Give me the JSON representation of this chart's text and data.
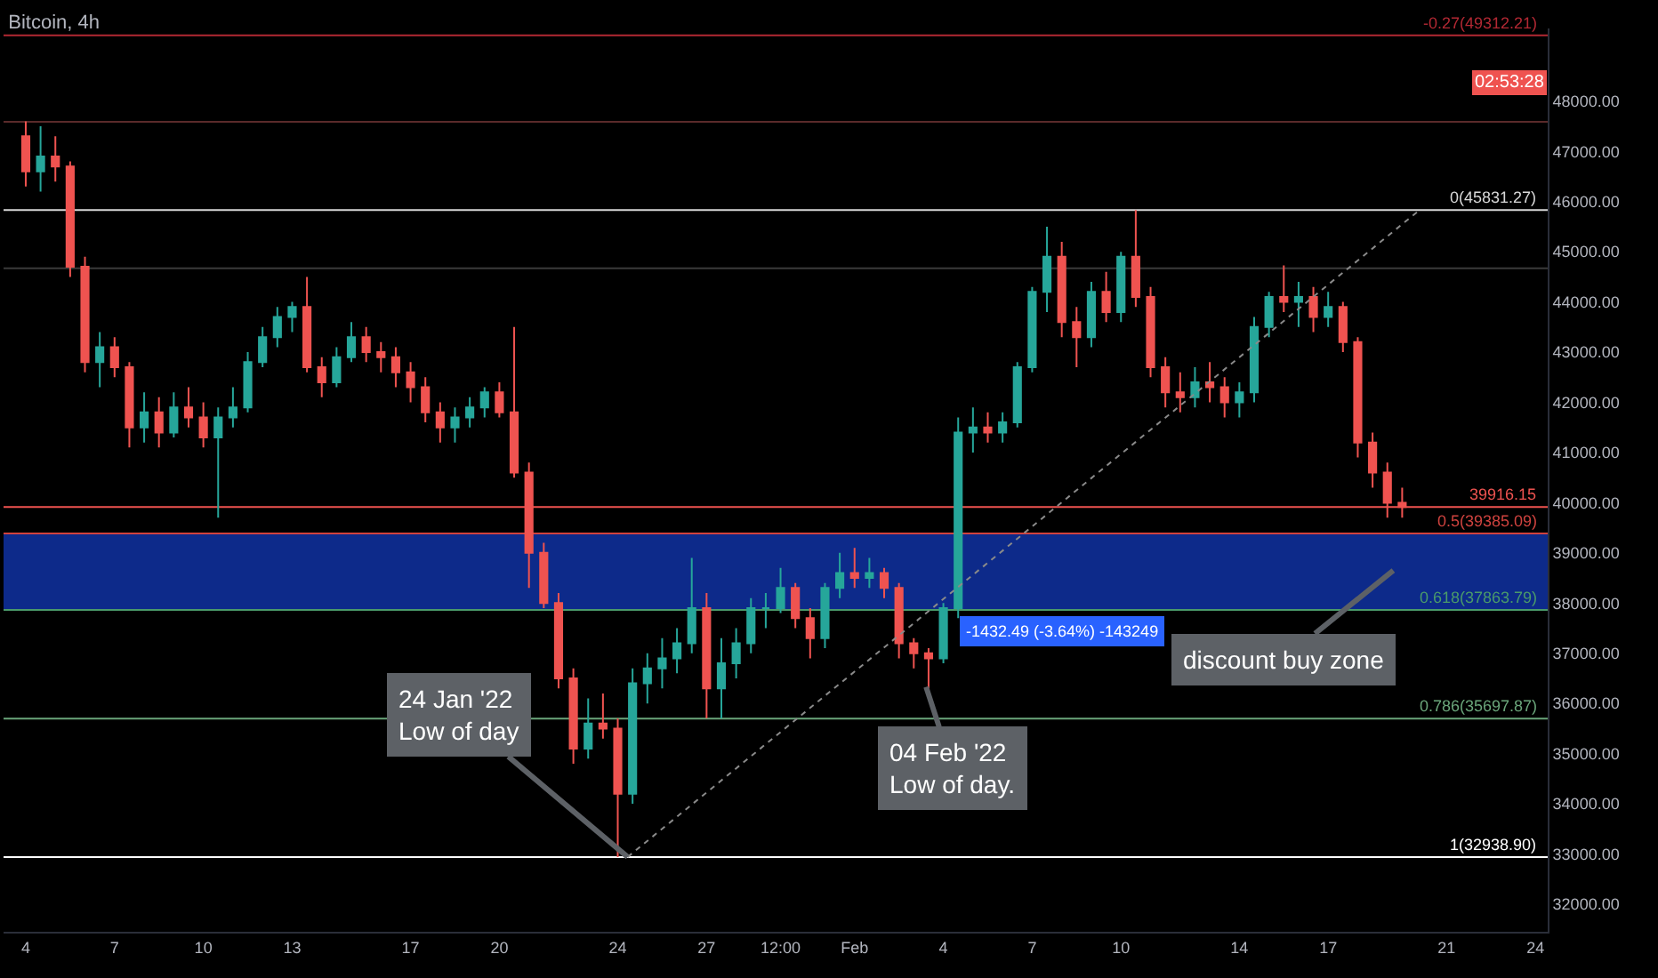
{
  "chart_data": {
    "type": "candlestick",
    "title": "Bitcoin, 4h",
    "x": [
      "2022-01-04T00:00",
      "2022-01-04T12:00",
      "2022-01-05T00:00",
      "2022-01-05T12:00",
      "2022-01-06T00:00",
      "2022-01-06T12:00",
      "2022-01-07T00:00",
      "2022-01-07T12:00",
      "2022-01-08T00:00",
      "2022-01-08T12:00",
      "2022-01-09T00:00",
      "2022-01-09T12:00",
      "2022-01-10T00:00",
      "2022-01-10T12:00",
      "2022-01-11T00:00",
      "2022-01-11T12:00",
      "2022-01-12T00:00",
      "2022-01-12T12:00",
      "2022-01-13T00:00",
      "2022-01-13T12:00",
      "2022-01-14T00:00",
      "2022-01-14T12:00",
      "2022-01-15T00:00",
      "2022-01-15T12:00",
      "2022-01-16T00:00",
      "2022-01-16T12:00",
      "2022-01-17T00:00",
      "2022-01-17T12:00",
      "2022-01-18T00:00",
      "2022-01-18T12:00",
      "2022-01-19T00:00",
      "2022-01-19T12:00",
      "2022-01-20T00:00",
      "2022-01-20T12:00",
      "2022-01-21T00:00",
      "2022-01-21T12:00",
      "2022-01-22T00:00",
      "2022-01-22T12:00",
      "2022-01-23T00:00",
      "2022-01-23T12:00",
      "2022-01-24T00:00",
      "2022-01-24T12:00",
      "2022-01-25T00:00",
      "2022-01-25T12:00",
      "2022-01-26T00:00",
      "2022-01-26T12:00",
      "2022-01-27T00:00",
      "2022-01-27T12:00",
      "2022-01-28T00:00",
      "2022-01-28T12:00",
      "2022-01-29T00:00",
      "2022-01-29T12:00",
      "2022-01-30T00:00",
      "2022-01-30T12:00",
      "2022-01-31T00:00",
      "2022-01-31T12:00",
      "2022-02-01T00:00",
      "2022-02-01T12:00",
      "2022-02-02T00:00",
      "2022-02-02T12:00",
      "2022-02-03T00:00",
      "2022-02-03T12:00",
      "2022-02-04T00:00",
      "2022-02-04T12:00",
      "2022-02-05T00:00",
      "2022-02-05T12:00",
      "2022-02-06T00:00",
      "2022-02-06T12:00",
      "2022-02-07T00:00",
      "2022-02-07T12:00",
      "2022-02-08T00:00",
      "2022-02-08T12:00",
      "2022-02-09T00:00",
      "2022-02-09T12:00",
      "2022-02-10T00:00",
      "2022-02-10T12:00",
      "2022-02-11T00:00",
      "2022-02-11T12:00",
      "2022-02-12T00:00",
      "2022-02-12T12:00",
      "2022-02-13T00:00",
      "2022-02-13T12:00",
      "2022-02-14T00:00",
      "2022-02-14T12:00",
      "2022-02-15T00:00",
      "2022-02-15T12:00",
      "2022-02-16T00:00",
      "2022-02-16T12:00",
      "2022-02-17T00:00",
      "2022-02-17T12:00",
      "2022-02-18T00:00",
      "2022-02-18T12:00",
      "2022-02-19T00:00",
      "2022-02-19T12:00"
    ],
    "ohlc": [
      [
        47300,
        47600,
        46300,
        46600
      ],
      [
        46600,
        47500,
        46200,
        46900
      ],
      [
        46900,
        47300,
        46400,
        46700
      ],
      [
        46700,
        46800,
        44500,
        44700
      ],
      [
        44700,
        44900,
        42600,
        42800
      ],
      [
        42800,
        43400,
        42300,
        43100
      ],
      [
        43100,
        43300,
        42500,
        42700
      ],
      [
        42700,
        42800,
        41100,
        41500
      ],
      [
        41500,
        42200,
        41200,
        41800
      ],
      [
        41800,
        42100,
        41100,
        41400
      ],
      [
        41400,
        42200,
        41300,
        41900
      ],
      [
        41900,
        42300,
        41500,
        41700
      ],
      [
        41700,
        42000,
        41100,
        41300
      ],
      [
        41300,
        41900,
        39700,
        41700
      ],
      [
        41700,
        42300,
        41500,
        41900
      ],
      [
        41900,
        43000,
        41800,
        42800
      ],
      [
        42800,
        43500,
        42700,
        43300
      ],
      [
        43300,
        43900,
        43100,
        43700
      ],
      [
        43700,
        44000,
        43400,
        43900
      ],
      [
        43900,
        44500,
        42600,
        42700
      ],
      [
        42700,
        42900,
        42100,
        42400
      ],
      [
        42400,
        43100,
        42300,
        42900
      ],
      [
        42900,
        43600,
        42800,
        43300
      ],
      [
        43300,
        43500,
        42800,
        43000
      ],
      [
        43000,
        43200,
        42600,
        42900
      ],
      [
        42900,
        43100,
        42300,
        42600
      ],
      [
        42600,
        42800,
        42000,
        42300
      ],
      [
        42300,
        42500,
        41600,
        41800
      ],
      [
        41800,
        42000,
        41200,
        41500
      ],
      [
        41500,
        41900,
        41200,
        41700
      ],
      [
        41700,
        42100,
        41500,
        41900
      ],
      [
        41900,
        42300,
        41700,
        42200
      ],
      [
        42200,
        42400,
        41700,
        41800
      ],
      [
        41800,
        43500,
        40500,
        40600
      ],
      [
        40600,
        40800,
        38300,
        39000
      ],
      [
        39000,
        39200,
        37900,
        38000
      ],
      [
        38000,
        38200,
        36300,
        36500
      ],
      [
        36500,
        36700,
        34800,
        35100
      ],
      [
        35100,
        36100,
        34900,
        35600
      ],
      [
        35600,
        36200,
        35300,
        35500
      ],
      [
        35500,
        35700,
        32940,
        34200
      ],
      [
        34200,
        36700,
        34000,
        36400
      ],
      [
        36400,
        37000,
        36000,
        36700
      ],
      [
        36700,
        37300,
        36300,
        36900
      ],
      [
        36900,
        37500,
        36600,
        37200
      ],
      [
        37200,
        38900,
        37000,
        37900
      ],
      [
        37900,
        38200,
        35700,
        36300
      ],
      [
        36300,
        37300,
        35700,
        36800
      ],
      [
        36800,
        37500,
        36500,
        37200
      ],
      [
        37200,
        38100,
        37000,
        37900
      ],
      [
        37900,
        38200,
        37500,
        37900
      ],
      [
        37900,
        38700,
        37800,
        38300
      ],
      [
        38300,
        38400,
        37500,
        37700
      ],
      [
        37700,
        37900,
        36900,
        37300
      ],
      [
        37300,
        38400,
        37100,
        38300
      ],
      [
        38300,
        39000,
        38100,
        38600
      ],
      [
        38600,
        39100,
        38300,
        38500
      ],
      [
        38500,
        38900,
        38300,
        38600
      ],
      [
        38600,
        38700,
        38100,
        38300
      ],
      [
        38300,
        38400,
        36900,
        37200
      ],
      [
        37200,
        37300,
        36700,
        37000
      ],
      [
        37000,
        37100,
        36300,
        36900
      ],
      [
        36900,
        38000,
        36800,
        37900
      ],
      [
        37900,
        41700,
        37700,
        41400
      ],
      [
        41400,
        41900,
        41000,
        41500
      ],
      [
        41500,
        41800,
        41200,
        41400
      ],
      [
        41400,
        41800,
        41200,
        41600
      ],
      [
        41600,
        42800,
        41500,
        42700
      ],
      [
        42700,
        44300,
        42600,
        44200
      ],
      [
        44200,
        45500,
        43800,
        44900
      ],
      [
        44900,
        45200,
        43300,
        43600
      ],
      [
        43600,
        43900,
        42700,
        43300
      ],
      [
        43300,
        44400,
        43100,
        44200
      ],
      [
        44200,
        44600,
        43600,
        43800
      ],
      [
        43800,
        45000,
        43600,
        44900
      ],
      [
        44900,
        45830,
        43900,
        44100
      ],
      [
        44100,
        44300,
        42500,
        42700
      ],
      [
        42700,
        42900,
        41900,
        42200
      ],
      [
        42200,
        42600,
        41800,
        42100
      ],
      [
        42100,
        42700,
        41900,
        42400
      ],
      [
        42400,
        42800,
        42000,
        42300
      ],
      [
        42300,
        42500,
        41700,
        42000
      ],
      [
        42000,
        42400,
        41700,
        42200
      ],
      [
        42200,
        43700,
        42000,
        43500
      ],
      [
        43500,
        44200,
        43300,
        44100
      ],
      [
        44100,
        44730,
        43800,
        44000
      ],
      [
        44000,
        44400,
        43500,
        44100
      ],
      [
        44100,
        44300,
        43400,
        43700
      ],
      [
        43700,
        44200,
        43500,
        43900
      ],
      [
        43900,
        44000,
        43000,
        43200
      ],
      [
        43200,
        43300,
        40900,
        41200
      ],
      [
        41200,
        41400,
        40300,
        40600
      ],
      [
        40600,
        40800,
        39700,
        40000
      ],
      [
        40000,
        40300,
        39700,
        39916.15
      ]
    ],
    "series": [
      {
        "type": "line",
        "x": [
          "2022-01-24T08:00",
          "2022-02-20T02:00"
        ],
        "values": [
          32940,
          45830
        ],
        "color": "#8a8a8a",
        "line_style": "dotted"
      }
    ],
    "xlim": [
      "2022-01-03T06:00",
      "2022-02-24T10:00"
    ],
    "xticks": [
      {
        "value": "2022-01-04",
        "label": "4"
      },
      {
        "value": "2022-01-07",
        "label": "7"
      },
      {
        "value": "2022-01-10",
        "label": "10"
      },
      {
        "value": "2022-01-13",
        "label": "13"
      },
      {
        "value": "2022-01-17",
        "label": "17"
      },
      {
        "value": "2022-01-20",
        "label": "20"
      },
      {
        "value": "2022-01-24",
        "label": "24"
      },
      {
        "value": "2022-01-27",
        "label": "27"
      },
      {
        "value": "2022-01-29T12:00",
        "label": "12:00"
      },
      {
        "value": "2022-02-01",
        "label": "Feb"
      },
      {
        "value": "2022-02-04",
        "label": "4"
      },
      {
        "value": "2022-02-07",
        "label": "7"
      },
      {
        "value": "2022-02-10",
        "label": "10"
      },
      {
        "value": "2022-02-14",
        "label": "14"
      },
      {
        "value": "2022-02-17",
        "label": "17"
      },
      {
        "value": "2022-02-21",
        "label": "21"
      },
      {
        "value": "2022-02-24",
        "label": "24"
      }
    ],
    "ylim": [
      31450,
      49450
    ],
    "yticks": [
      {
        "value": 32000,
        "label": "32000.00"
      },
      {
        "value": 33000,
        "label": "33000.00"
      },
      {
        "value": 34000,
        "label": "34000.00"
      },
      {
        "value": 35000,
        "label": "35000.00"
      },
      {
        "value": 36000,
        "label": "36000.00"
      },
      {
        "value": 37000,
        "label": "37000.00"
      },
      {
        "value": 38000,
        "label": "38000.00"
      },
      {
        "value": 39000,
        "label": "39000.00"
      },
      {
        "value": 40000,
        "label": "40000.00"
      },
      {
        "value": 41000,
        "label": "41000.00"
      },
      {
        "value": 42000,
        "label": "42000.00"
      },
      {
        "value": 43000,
        "label": "43000.00"
      },
      {
        "value": 44000,
        "label": "44000.00"
      },
      {
        "value": 45000,
        "label": "45000.00"
      },
      {
        "value": 46000,
        "label": "46000.00"
      },
      {
        "value": 47000,
        "label": "47000.00"
      },
      {
        "value": 48000,
        "label": "48000.00"
      }
    ],
    "bands": [
      {
        "axis": "y",
        "from": 37863.79,
        "to": 39385.09,
        "color": "#0d2a8a"
      }
    ],
    "ref_lines": [
      {
        "axis": "y",
        "value": 49312.21,
        "label": "-0.27(49312.21)",
        "color": "#b22833"
      },
      {
        "axis": "y",
        "value": 47590,
        "color": "#5a2a2a"
      },
      {
        "axis": "y",
        "value": 45831.27,
        "label": "0(45831.27)",
        "color": "#d8d8d8"
      },
      {
        "axis": "y",
        "value": 44670,
        "color": "#3a3a3a"
      },
      {
        "axis": "y",
        "value": 39916.15,
        "label": "39916.15",
        "color": "#ef5350"
      },
      {
        "axis": "y",
        "value": 39385.09,
        "label": "0.5(39385.09)",
        "color": "#d0433f"
      },
      {
        "axis": "y",
        "value": 37863.79,
        "label": "0.618(37863.79)",
        "color": "#4a9a6a"
      },
      {
        "axis": "y",
        "value": 35697.87,
        "label": "0.786(35697.87)",
        "color": "#6aa57a"
      },
      {
        "axis": "y",
        "value": 32938.9,
        "label": "1(32938.90)",
        "color": "#ffffff"
      }
    ],
    "annotations": [
      {
        "text": "24 Jan '22\nLow of day",
        "x": "2022-01-24T08:00",
        "y": 32940
      },
      {
        "text": "04 Feb '22\nLow of day.",
        "x": "2022-02-03T10:00",
        "y": 36330
      },
      "discount buy zone",
      {
        "text": "-1432.49 (-3.64%) -143249",
        "x": "2022-02-08T00:00",
        "y": 37952.6
      },
      "02:53:28"
    ]
  }
}
